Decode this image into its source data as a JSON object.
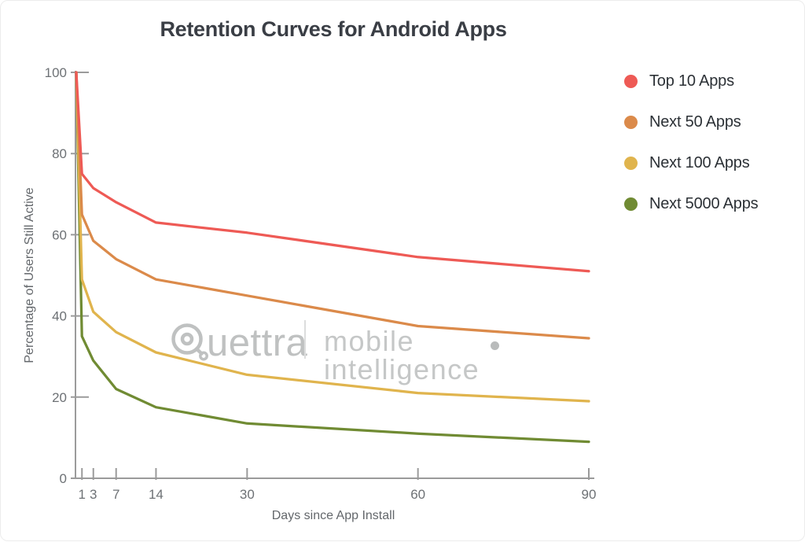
{
  "chart_data": {
    "type": "line",
    "title": "Retention Curves for Android Apps",
    "xlabel": "Days since App Install",
    "ylabel": "Percentage of Users Still Active",
    "xlim": [
      0,
      90
    ],
    "ylim": [
      0,
      100
    ],
    "x_ticks": [
      1,
      3,
      7,
      14,
      30,
      60,
      90
    ],
    "y_ticks": [
      0,
      20,
      40,
      60,
      80,
      100
    ],
    "grid": false,
    "legend_position": "right",
    "x": [
      0,
      1,
      3,
      7,
      14,
      30,
      60,
      90
    ],
    "series": [
      {
        "name": "Top 10 Apps",
        "color": "#ee5a55",
        "values": [
          100,
          75,
          71.5,
          68,
          63,
          60.5,
          54.5,
          51
        ]
      },
      {
        "name": "Next 50 Apps",
        "color": "#db8a4a",
        "values": [
          100,
          65,
          58.5,
          54,
          49,
          45,
          37.5,
          34.5
        ]
      },
      {
        "name": "Next 100 Apps",
        "color": "#e0b44d",
        "values": [
          100,
          49,
          41,
          36,
          31,
          25.5,
          21,
          19
        ]
      },
      {
        "name": "Next 5000 Apps",
        "color": "#708b33",
        "values": [
          100,
          35,
          29,
          22,
          17.5,
          13.5,
          11,
          9
        ]
      }
    ]
  },
  "axis": {
    "color": "#9b9b9b",
    "tick_label_color": "#6d7175"
  },
  "watermark": {
    "brand": "Quettra",
    "brand_text_suffix": "uettra",
    "tagline": "mobile intelligence",
    "color": "#bfc1c1"
  }
}
